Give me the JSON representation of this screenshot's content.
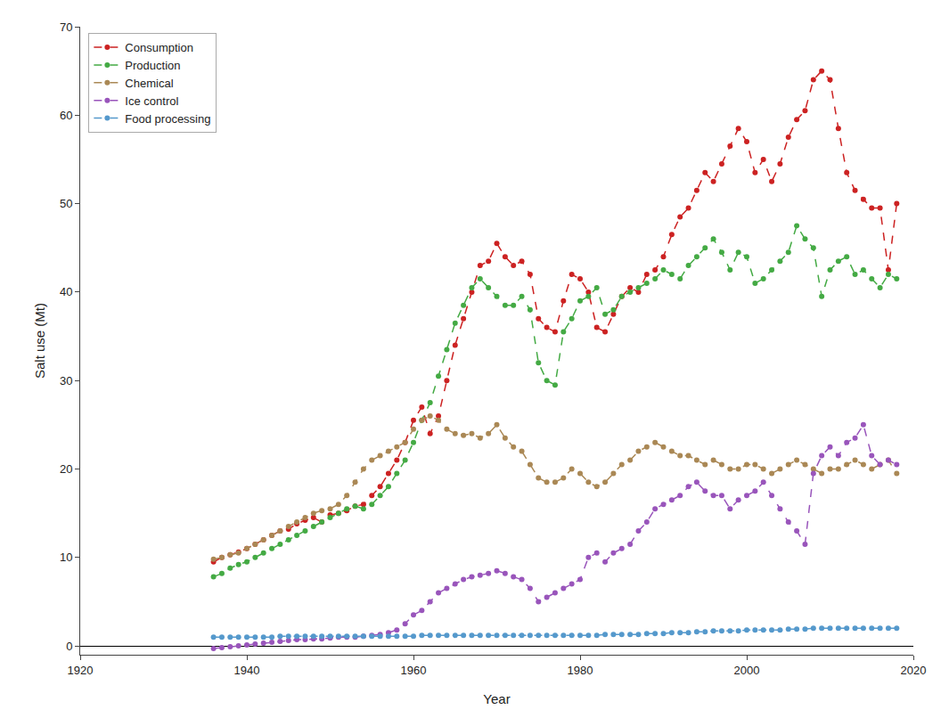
{
  "chart_data": {
    "type": "line",
    "xlabel": "Year",
    "ylabel": "Salt use (Mt)",
    "xlim": [
      1920,
      2020
    ],
    "ylim": [
      -1,
      70
    ],
    "xticks": [
      1920,
      1940,
      1960,
      1980,
      2000,
      2020
    ],
    "yticks": [
      0,
      10,
      20,
      30,
      40,
      50,
      60,
      70
    ],
    "grid": false,
    "legend": "upper left",
    "marker": "circle",
    "line_style": "dashed",
    "x": [
      1936,
      1937,
      1938,
      1939,
      1940,
      1941,
      1942,
      1943,
      1944,
      1945,
      1946,
      1947,
      1948,
      1949,
      1950,
      1951,
      1952,
      1953,
      1954,
      1955,
      1956,
      1957,
      1958,
      1959,
      1960,
      1961,
      1962,
      1963,
      1964,
      1965,
      1966,
      1967,
      1968,
      1969,
      1970,
      1971,
      1972,
      1973,
      1974,
      1975,
      1976,
      1977,
      1978,
      1979,
      1980,
      1981,
      1982,
      1983,
      1984,
      1985,
      1986,
      1987,
      1988,
      1989,
      1990,
      1991,
      1992,
      1993,
      1994,
      1995,
      1996,
      1997,
      1998,
      1999,
      2000,
      2001,
      2002,
      2003,
      2004,
      2005,
      2006,
      2007,
      2008,
      2009,
      2010,
      2011,
      2012,
      2013,
      2014,
      2015,
      2016,
      2017,
      2018
    ],
    "series": [
      {
        "name": "Consumption",
        "color": "#cc2222",
        "values": [
          9.5,
          10.0,
          10.3,
          10.6,
          11.0,
          11.5,
          12.0,
          12.5,
          13.0,
          13.2,
          13.8,
          14.2,
          14.5,
          14.0,
          14.8,
          15.0,
          15.3,
          15.8,
          16.0,
          17.0,
          18.0,
          19.5,
          21.0,
          23.0,
          25.5,
          27.0,
          24.0,
          26.0,
          30.0,
          34.0,
          37.0,
          40.0,
          43.0,
          43.5,
          45.5,
          44.0,
          43.0,
          43.5,
          42.0,
          37.0,
          36.0,
          35.5,
          39.0,
          42.0,
          41.5,
          40.0,
          36.0,
          35.5,
          37.5,
          39.5,
          40.5,
          40.0,
          42.0,
          42.5,
          44.0,
          46.5,
          48.5,
          49.5,
          51.5,
          53.5,
          52.5,
          54.5,
          56.5,
          58.5,
          57.0,
          53.5,
          55.0,
          52.5,
          54.5,
          57.5,
          59.5,
          60.5,
          64.0,
          65.0,
          64.0,
          58.5,
          53.5,
          51.5,
          50.5,
          49.5,
          49.5,
          42.5,
          50.0
        ]
      },
      {
        "name": "Production",
        "color": "#44aa44",
        "values": [
          7.8,
          8.2,
          8.8,
          9.2,
          9.5,
          10.0,
          10.5,
          11.0,
          11.5,
          12.0,
          12.5,
          13.0,
          13.5,
          14.0,
          14.5,
          15.0,
          15.5,
          15.8,
          15.5,
          16.0,
          17.0,
          18.0,
          19.5,
          21.0,
          23.0,
          25.5,
          27.5,
          30.5,
          33.5,
          36.5,
          38.5,
          40.5,
          41.5,
          40.5,
          39.5,
          38.5,
          38.5,
          39.5,
          38.0,
          32.0,
          30.0,
          29.5,
          35.5,
          37.0,
          39.0,
          39.5,
          40.5,
          37.5,
          38.0,
          39.5,
          40.0,
          40.5,
          41.0,
          41.5,
          42.5,
          42.0,
          41.5,
          43.0,
          44.0,
          45.0,
          46.0,
          44.5,
          42.5,
          44.5,
          44.0,
          41.0,
          41.5,
          42.5,
          43.5,
          44.5,
          47.5,
          46.0,
          45.0,
          39.5,
          42.5,
          43.5,
          44.0,
          42.0,
          42.5,
          41.5,
          40.5,
          42.0,
          41.5
        ]
      },
      {
        "name": "Chemical",
        "color": "#aa8855",
        "values": [
          9.8,
          10.0,
          10.3,
          10.5,
          11.0,
          11.5,
          12.0,
          12.5,
          13.0,
          13.5,
          14.0,
          14.5,
          15.0,
          15.3,
          15.5,
          16.0,
          17.0,
          18.5,
          20.0,
          21.0,
          21.5,
          22.0,
          22.5,
          23.0,
          24.5,
          25.5,
          26.0,
          25.5,
          24.5,
          24.0,
          23.8,
          24.0,
          23.5,
          24.0,
          25.0,
          23.5,
          22.5,
          22.0,
          20.5,
          19.0,
          18.5,
          18.5,
          19.0,
          20.0,
          19.5,
          18.5,
          18.0,
          18.5,
          19.5,
          20.5,
          21.0,
          22.0,
          22.5,
          23.0,
          22.5,
          22.0,
          21.5,
          21.5,
          21.0,
          20.5,
          21.0,
          20.5,
          20.0,
          20.0,
          20.5,
          20.5,
          20.0,
          19.5,
          20.0,
          20.5,
          21.0,
          20.5,
          20.0,
          19.5,
          20.0,
          20.0,
          20.5,
          21.0,
          20.5,
          20.0,
          20.5,
          21.0,
          19.5
        ]
      },
      {
        "name": "Ice control",
        "color": "#9955bb",
        "values": [
          -0.3,
          -0.2,
          -0.1,
          0.0,
          0.1,
          0.2,
          0.3,
          0.4,
          0.5,
          0.6,
          0.7,
          0.7,
          0.8,
          0.8,
          0.9,
          1.0,
          1.0,
          1.0,
          1.1,
          1.2,
          1.3,
          1.5,
          1.8,
          2.5,
          3.5,
          4.0,
          5.0,
          6.0,
          6.5,
          7.0,
          7.5,
          7.8,
          8.0,
          8.2,
          8.5,
          8.2,
          7.8,
          7.5,
          6.5,
          5.0,
          5.5,
          6.0,
          6.5,
          7.0,
          7.5,
          10.0,
          10.5,
          9.5,
          10.5,
          11.0,
          11.5,
          13.0,
          14.0,
          15.5,
          16.0,
          16.5,
          17.0,
          18.0,
          18.5,
          17.5,
          17.0,
          17.0,
          15.5,
          16.5,
          17.0,
          17.5,
          18.5,
          17.0,
          15.5,
          14.0,
          13.0,
          11.5,
          19.5,
          21.5,
          22.5,
          21.5,
          23.0,
          23.5,
          25.0,
          21.5,
          20.5,
          21.0,
          20.5
        ]
      },
      {
        "name": "Food processing",
        "color": "#5599cc",
        "values": [
          1.0,
          1.0,
          1.0,
          1.0,
          1.0,
          1.0,
          1.0,
          1.0,
          1.1,
          1.1,
          1.1,
          1.1,
          1.1,
          1.1,
          1.1,
          1.1,
          1.1,
          1.1,
          1.1,
          1.1,
          1.1,
          1.1,
          1.1,
          1.1,
          1.1,
          1.2,
          1.2,
          1.2,
          1.2,
          1.2,
          1.2,
          1.2,
          1.2,
          1.2,
          1.2,
          1.2,
          1.2,
          1.2,
          1.2,
          1.2,
          1.2,
          1.2,
          1.2,
          1.2,
          1.2,
          1.2,
          1.2,
          1.3,
          1.3,
          1.3,
          1.3,
          1.3,
          1.4,
          1.4,
          1.4,
          1.5,
          1.5,
          1.5,
          1.6,
          1.6,
          1.7,
          1.7,
          1.7,
          1.7,
          1.8,
          1.8,
          1.8,
          1.8,
          1.8,
          1.9,
          1.9,
          1.9,
          2.0,
          2.0,
          2.0,
          2.0,
          2.0,
          2.0,
          2.0,
          2.0,
          2.0,
          2.0,
          2.0
        ]
      }
    ]
  }
}
